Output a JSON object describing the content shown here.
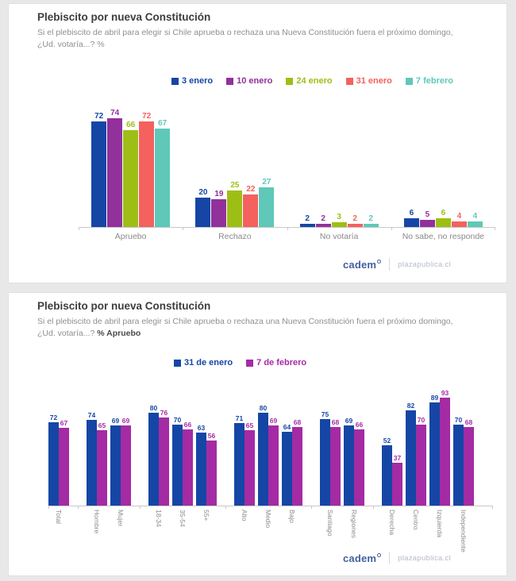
{
  "panels": [
    {
      "title": "Plebiscito por nueva Constitución",
      "subtitle": "Si el plebiscito de abril para elegir si Chile aprueba o rechaza una Nueva Constitución fuera el próximo domingo, ¿Ud. votaría...?",
      "subtitle_suffix": "%"
    },
    {
      "title": "Plebiscito por nueva Constitución",
      "subtitle": "Si el plebiscito de abril para elegir si Chile aprueba o rechaza una Nueva Constitución fuera el próximo domingo, ¿Ud. votaría...?",
      "subtitle_suffix": "% Apruebo"
    }
  ],
  "footer": {
    "brand": "cadem",
    "site": "plazapublica.cl"
  },
  "chart_data": [
    {
      "type": "bar",
      "title": "Plebiscito por nueva Constitución",
      "question": "Si el plebiscito de abril para elegir si Chile aprueba o rechaza una Nueva Constitución fuera el próximo domingo, ¿Ud. votaría...? %",
      "legend_position": "top",
      "grid": false,
      "data_labels": true,
      "ylim": [
        0,
        80
      ],
      "categories": [
        "Apruebo",
        "Rechazo",
        "No votaría",
        "No sabe, no responde"
      ],
      "series": [
        {
          "name": "3 enero",
          "color": "#1546A5",
          "values": [
            72,
            20,
            2,
            6
          ]
        },
        {
          "name": "10 enero",
          "color": "#92309C",
          "values": [
            74,
            19,
            2,
            5
          ]
        },
        {
          "name": "24 enero",
          "color": "#9DBF15",
          "values": [
            66,
            25,
            3,
            6
          ]
        },
        {
          "name": "31 enero",
          "color": "#F4615E",
          "values": [
            72,
            22,
            2,
            4
          ]
        },
        {
          "name": "7 febrero",
          "color": "#5FC8B8",
          "values": [
            67,
            27,
            2,
            4
          ]
        }
      ]
    },
    {
      "type": "bar",
      "title": "Plebiscito por nueva Constitución",
      "question": "Si el plebiscito de abril para elegir si Chile aprueba o rechaza una Nueva Constitución fuera el próximo domingo, ¿Ud. votaría...? % Apruebo",
      "legend_position": "top",
      "grid": false,
      "data_labels": true,
      "ylim": [
        0,
        100
      ],
      "categories": [
        "Total",
        "Hombre",
        "Mujer",
        "18-34",
        "35-54",
        "55+",
        "Alto",
        "Medio",
        "Bajo",
        "Santiago",
        "Regiones",
        "Derecha",
        "Centro",
        "Izquierda",
        "Independiente"
      ],
      "group_sizes": [
        1,
        2,
        3,
        3,
        2,
        4
      ],
      "series": [
        {
          "name": "31 de enero",
          "color": "#1546A5",
          "values": [
            72,
            74,
            69,
            80,
            70,
            63,
            71,
            80,
            64,
            75,
            69,
            52,
            82,
            89,
            70
          ]
        },
        {
          "name": "7 de febrero",
          "color": "#A42BA4",
          "values": [
            67,
            65,
            69,
            76,
            66,
            56,
            65,
            69,
            68,
            68,
            66,
            37,
            70,
            93,
            68
          ]
        }
      ]
    }
  ]
}
